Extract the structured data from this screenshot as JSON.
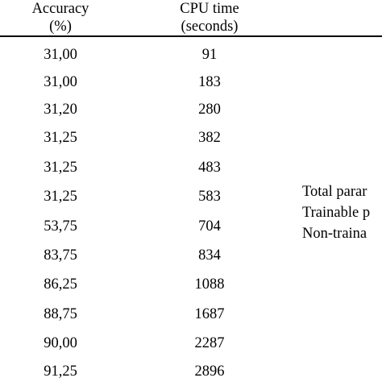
{
  "headers": {
    "accuracy_line1": "Accuracy",
    "accuracy_line2": "(%)",
    "cpu_line1": "CPU time",
    "cpu_line2": "(seconds)"
  },
  "rows": [
    {
      "accuracy": "31,00",
      "cpu": "91"
    },
    {
      "accuracy": "31,00",
      "cpu": "183"
    },
    {
      "accuracy": "31,20",
      "cpu": "280"
    },
    {
      "accuracy": "31,25",
      "cpu": "382"
    },
    {
      "accuracy": "31,25",
      "cpu": "483"
    },
    {
      "accuracy": "31,25",
      "cpu": "583"
    },
    {
      "accuracy": "53,75",
      "cpu": "704"
    },
    {
      "accuracy": "83,75",
      "cpu": "834"
    },
    {
      "accuracy": "86,25",
      "cpu": "1088"
    },
    {
      "accuracy": "88,75",
      "cpu": "1687"
    },
    {
      "accuracy": "90,00",
      "cpu": "2287"
    },
    {
      "accuracy": "91,25",
      "cpu": "2896"
    }
  ],
  "side_notes": [
    "Total parar",
    "Trainable p",
    "Non-traina"
  ]
}
